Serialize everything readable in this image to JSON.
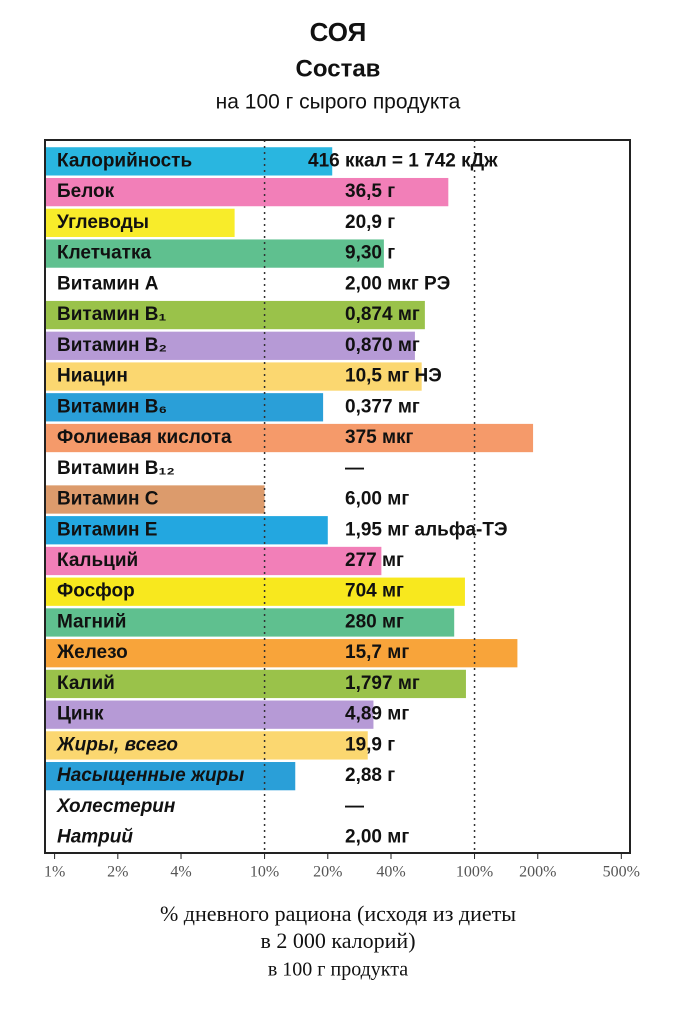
{
  "chart_data": {
    "type": "bar",
    "orientation": "horizontal",
    "title": "СОЯ",
    "subtitle": "Состав",
    "caption": "на 100 г сырого продукта",
    "categories": [
      "Калорийность",
      "Белок",
      "Углеводы",
      "Клетчатка",
      "Витамин A",
      "Витамин B₁",
      "Витамин B₂",
      "Ниацин",
      "Витамин B₆",
      "Фолиевая кислота",
      "Витамин B₁₂",
      "Витамин C",
      "Витамин E",
      "Кальций",
      "Фосфор",
      "Магний",
      "Железо",
      "Калий",
      "Цинк",
      "Жиры, всего",
      "Насыщенные жиры",
      "Холестерин",
      "Натрий"
    ],
    "values": [
      21,
      75,
      7.2,
      37,
      null,
      58,
      52,
      56,
      19,
      190,
      null,
      10,
      20,
      36,
      90,
      80,
      160,
      91,
      33,
      31,
      14,
      null,
      null
    ],
    "colors": [
      "#29b6e0",
      "#f27fb8",
      "#f8ec2a",
      "#5fc08f",
      "#ffffff",
      "#9ac24a",
      "#b69ad6",
      "#fbd770",
      "#2a9fd8",
      "#f59a6a",
      "#ffffff",
      "#dc9b6c",
      "#23a7e0",
      "#f27fb8",
      "#f8e81e",
      "#5fc08f",
      "#f8a43a",
      "#9ac24a",
      "#b69ad6",
      "#fbd770",
      "#2a9fd8",
      "#ffffff",
      "#ffffff"
    ],
    "amounts": [
      "416 ккал = 1 742 кДж",
      "36,5 г",
      "20,9 г",
      "9,30 г",
      "2,00 мкг РЭ",
      "0,874 мг",
      "0,870 мг",
      "10,5 мг НЭ",
      "0,377 мг",
      "375 мкг",
      "—",
      "6,00 мг",
      "1,95 мг альфа-ТЭ",
      "277 мг",
      "704 мг",
      "280 мг",
      "15,7 мг",
      "1,797 мг",
      "4,89 мг",
      "19,9 г",
      "2,88 г",
      "—",
      "2,00 мг"
    ],
    "xscale": "log",
    "xlim": [
      0.9,
      550
    ],
    "xticks": [
      {
        "value": 1,
        "label": "1%"
      },
      {
        "value": 2,
        "label": "2%"
      },
      {
        "value": 4,
        "label": "4%"
      },
      {
        "value": 10,
        "label": "10%"
      },
      {
        "value": 20,
        "label": "20%"
      },
      {
        "value": 40,
        "label": "40%"
      },
      {
        "value": 100,
        "label": "100%"
      },
      {
        "value": 200,
        "label": "200%"
      },
      {
        "value": 500,
        "label": "500%"
      }
    ],
    "grid_at": [
      10,
      100
    ],
    "x_label": [
      "% дневного рациона (исходя из диеты",
      "в 2 000 калорий)"
    ],
    "x_sublabel": "в 100 г продукта"
  }
}
